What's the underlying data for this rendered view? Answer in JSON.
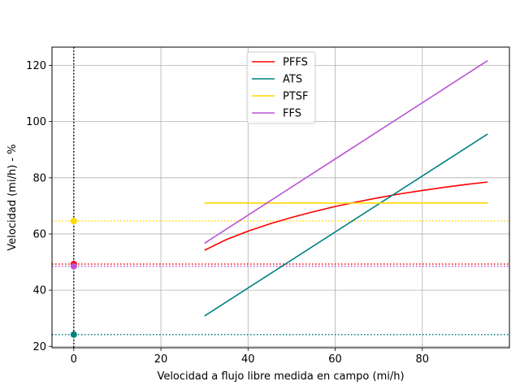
{
  "chart_data": {
    "type": "line",
    "title": "",
    "xlabel": "Velocidad a flujo libre medida en campo (mi/h)",
    "ylabel": "Velocidad (mi/h) - %",
    "xlim": [
      -5,
      100
    ],
    "ylim": [
      19.5,
      126.5
    ],
    "xticks": [
      0,
      20,
      40,
      60,
      80
    ],
    "yticks": [
      20,
      40,
      60,
      80,
      100,
      120
    ],
    "grid": true,
    "legend_position": "top-center",
    "series": [
      {
        "name": "PFFS",
        "color": "#ff0000",
        "x": [
          30,
          35,
          40,
          45,
          50,
          55,
          60,
          65,
          70,
          75,
          80,
          85,
          90,
          95
        ],
        "y": [
          54.2,
          58.0,
          61.0,
          63.6,
          65.9,
          67.9,
          69.8,
          71.4,
          72.9,
          74.3,
          75.5,
          76.6,
          77.6,
          78.5
        ]
      },
      {
        "name": "ATS",
        "color": "#008080",
        "x": [
          30,
          95
        ],
        "y": [
          30.8,
          95.6
        ]
      },
      {
        "name": "PTSF",
        "color": "#ffd700",
        "x": [
          30,
          95
        ],
        "y": [
          71.0,
          71.0
        ]
      },
      {
        "name": "FFS",
        "color": "#ba55d3",
        "x": [
          30,
          95
        ],
        "y": [
          56.7,
          121.7
        ]
      }
    ],
    "reference_lines": {
      "vertical": {
        "x": 0,
        "color": "#000000",
        "style": "dotted"
      },
      "horizontal": [
        {
          "y": 49.3,
          "color": "#ff0000",
          "style": "dotted"
        },
        {
          "y": 24.2,
          "color": "#008080",
          "style": "dotted"
        },
        {
          "y": 64.6,
          "color": "#ffd700",
          "style": "dotted"
        },
        {
          "y": 48.5,
          "color": "#ba55d3",
          "style": "dotted"
        }
      ]
    },
    "points": [
      {
        "x": 0,
        "y": 49.3,
        "color": "#ff0000"
      },
      {
        "x": 0,
        "y": 24.2,
        "color": "#008080"
      },
      {
        "x": 0,
        "y": 64.6,
        "color": "#ffd700"
      },
      {
        "x": 0,
        "y": 48.5,
        "color": "#ba55d3"
      }
    ]
  }
}
